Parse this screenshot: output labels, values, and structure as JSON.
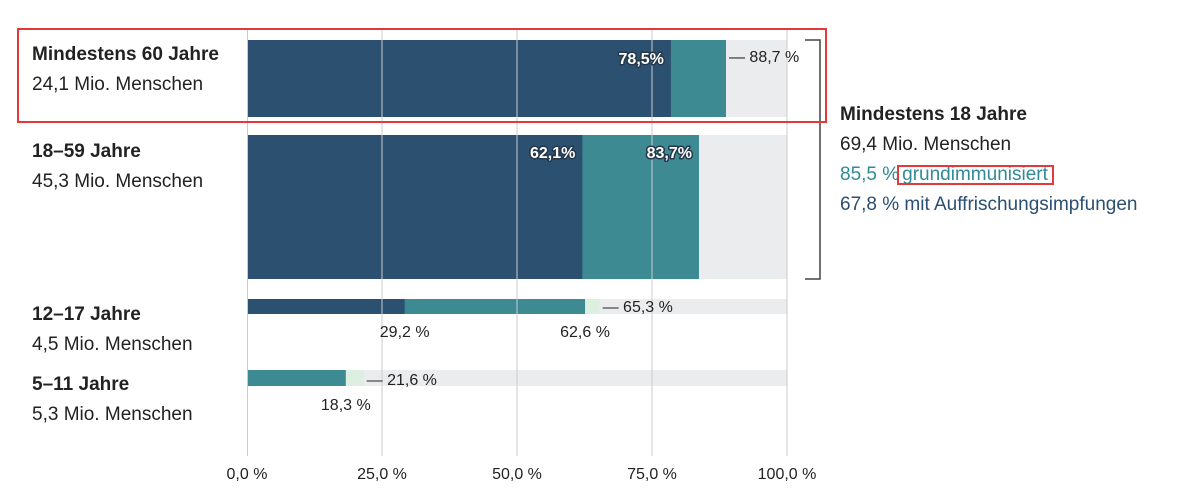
{
  "colors": {
    "first_dose": "#3d8a93",
    "booster": "#2c5170",
    "track": "#ebecee",
    "highlight": "#e5383b"
  },
  "groups": [
    {
      "title": "Mindestens 60 Jahre",
      "subtitle": "24,1 Mio. Menschen",
      "highlighted": true
    },
    {
      "title": "18–59 Jahre",
      "subtitle": "45,3 Mio. Menschen",
      "highlighted": false
    },
    {
      "title": "12–17 Jahre",
      "subtitle": "4,5 Mio. Menschen",
      "highlighted": false
    },
    {
      "title": "5–11 Jahre",
      "subtitle": "5,3 Mio. Menschen",
      "highlighted": false
    }
  ],
  "adults": {
    "title": "Mindestens 18 Jahre",
    "population": "69,4 Mio. Menschen",
    "basic_value": "85,5 %",
    "basic_label": "grundimmunisiert",
    "booster_text": "67,8 % mit Auffrischungsimpfungen"
  },
  "chart_data": {
    "type": "bar",
    "orientation": "horizontal",
    "xlim": [
      0,
      100
    ],
    "x_ticks": [
      0,
      25,
      50,
      75,
      100
    ],
    "x_tick_labels": [
      "0,0 %",
      "25,0 %",
      "50,0 %",
      "75,0 %",
      "100,0 %"
    ],
    "grid": true,
    "categories": [
      "Mindestens 60 Jahre",
      "18–59 Jahre",
      "12–17 Jahre",
      "5–11 Jahre"
    ],
    "series": [
      {
        "values": [
          88.7,
          83.7,
          62.6,
          18.3
        ],
        "labels": [
          "",
          "83,7%",
          "62,6 %",
          "18,3 %"
        ]
      },
      {
        "values": [
          78.5,
          62.1,
          29.2,
          0
        ],
        "labels": [
          "78,5%",
          "62,1%",
          "29,2 %",
          ""
        ]
      },
      {
        "values": [
          null,
          null,
          65.3,
          21.6
        ],
        "labels": [
          "",
          "",
          "— 65,3 %",
          "— 21,6 %"
        ]
      }
    ],
    "annotations": [
      "— 88,7 %"
    ]
  }
}
